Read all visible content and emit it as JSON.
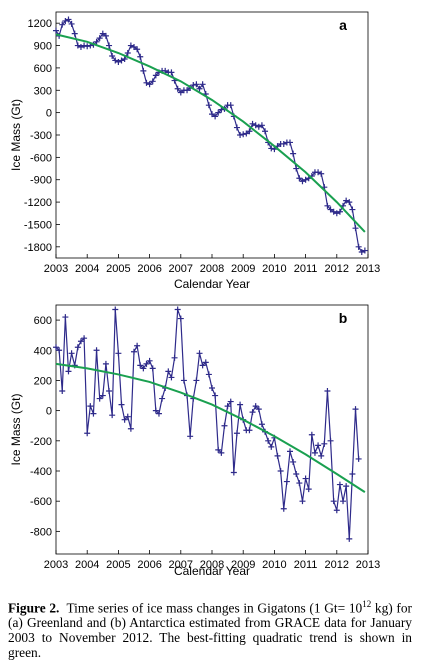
{
  "chart_data": [
    {
      "type": "line",
      "annotation": "a",
      "xlabel": "Calendar Year",
      "ylabel": "Ice Mass (Gt)",
      "xlim": [
        2003,
        2013
      ],
      "xticks": [
        2003,
        2004,
        2005,
        2006,
        2007,
        2008,
        2009,
        2010,
        2011,
        2012,
        2013
      ],
      "ylim": [
        -1950,
        1350
      ],
      "yticks": [
        1200,
        900,
        600,
        300,
        0,
        -300,
        -600,
        -900,
        -1200,
        -1500,
        -1800
      ],
      "series": [
        {
          "color": "#2e2a8a",
          "marker": "+",
          "x": [
            2003.0,
            2003.1,
            2003.2,
            2003.3,
            2003.4,
            2003.5,
            2003.6,
            2003.7,
            2003.8,
            2003.9,
            2004.0,
            2004.1,
            2004.2,
            2004.3,
            2004.4,
            2004.5,
            2004.6,
            2004.7,
            2004.8,
            2004.9,
            2005.0,
            2005.1,
            2005.2,
            2005.3,
            2005.4,
            2005.5,
            2005.6,
            2005.7,
            2005.8,
            2005.9,
            2006.0,
            2006.1,
            2006.2,
            2006.3,
            2006.4,
            2006.5,
            2006.6,
            2006.7,
            2006.8,
            2006.9,
            2007.0,
            2007.1,
            2007.2,
            2007.3,
            2007.4,
            2007.5,
            2007.6,
            2007.7,
            2007.8,
            2007.9,
            2008.0,
            2008.1,
            2008.2,
            2008.3,
            2008.4,
            2008.5,
            2008.6,
            2008.7,
            2008.8,
            2008.9,
            2009.0,
            2009.1,
            2009.2,
            2009.3,
            2009.4,
            2009.5,
            2009.6,
            2009.7,
            2009.8,
            2009.9,
            2010.0,
            2010.1,
            2010.2,
            2010.3,
            2010.4,
            2010.5,
            2010.6,
            2010.7,
            2010.8,
            2010.9,
            2011.0,
            2011.1,
            2011.2,
            2011.3,
            2011.4,
            2011.5,
            2011.6,
            2011.7,
            2011.8,
            2011.9,
            2012.0,
            2012.1,
            2012.2,
            2012.3,
            2012.4,
            2012.5,
            2012.6,
            2012.7,
            2012.8,
            2012.9
          ],
          "values": [
            1100,
            1030,
            1180,
            1230,
            1250,
            1190,
            1060,
            900,
            880,
            900,
            890,
            900,
            910,
            950,
            1000,
            1060,
            1030,
            900,
            760,
            700,
            680,
            700,
            720,
            800,
            900,
            880,
            850,
            750,
            560,
            400,
            380,
            420,
            500,
            540,
            560,
            560,
            540,
            540,
            430,
            320,
            270,
            300,
            300,
            330,
            370,
            380,
            320,
            380,
            250,
            100,
            -20,
            -50,
            0,
            40,
            50,
            100,
            100,
            -50,
            -200,
            -300,
            -290,
            -280,
            -250,
            -150,
            -170,
            -190,
            -170,
            -250,
            -400,
            -480,
            -490,
            -450,
            -420,
            -420,
            -400,
            -400,
            -550,
            -750,
            -880,
            -920,
            -900,
            -880,
            -850,
            -800,
            -800,
            -820,
            -1000,
            -1250,
            -1300,
            -1330,
            -1350,
            -1330,
            -1250,
            -1180,
            -1200,
            -1300,
            -1550,
            -1800,
            -1870,
            -1850
          ]
        },
        {
          "color": "#1aa050",
          "x": [
            2003,
            2004,
            2005,
            2006,
            2007,
            2008,
            2009,
            2010,
            2011,
            2012,
            2012.9
          ],
          "values": [
            1050,
            950,
            800,
            620,
            420,
            170,
            -120,
            -450,
            -800,
            -1200,
            -1600
          ]
        }
      ]
    },
    {
      "type": "line",
      "annotation": "b",
      "xlabel": "Calendar Year",
      "ylabel": "Ice Mass (Gt)",
      "xlim": [
        2003,
        2013
      ],
      "xticks": [
        2003,
        2004,
        2005,
        2006,
        2007,
        2008,
        2009,
        2010,
        2011,
        2012,
        2013
      ],
      "ylim": [
        -950,
        700
      ],
      "yticks": [
        600,
        400,
        200,
        0,
        -200,
        -400,
        -600,
        -800
      ],
      "series": [
        {
          "color": "#2e2a8a",
          "marker": "+",
          "x": [
            2003.0,
            2003.1,
            2003.2,
            2003.3,
            2003.4,
            2003.5,
            2003.6,
            2003.7,
            2003.8,
            2003.9,
            2004.0,
            2004.1,
            2004.2,
            2004.3,
            2004.4,
            2004.5,
            2004.6,
            2004.7,
            2004.8,
            2004.9,
            2005.0,
            2005.1,
            2005.2,
            2005.3,
            2005.4,
            2005.5,
            2005.6,
            2005.7,
            2005.8,
            2005.9,
            2006.0,
            2006.1,
            2006.2,
            2006.3,
            2006.4,
            2006.5,
            2006.6,
            2006.7,
            2006.8,
            2006.9,
            2007.0,
            2007.1,
            2007.2,
            2007.3,
            2007.4,
            2007.5,
            2007.6,
            2007.7,
            2007.8,
            2007.9,
            2008.0,
            2008.1,
            2008.2,
            2008.3,
            2008.4,
            2008.5,
            2008.6,
            2008.7,
            2008.8,
            2008.9,
            2009.0,
            2009.1,
            2009.2,
            2009.3,
            2009.4,
            2009.5,
            2009.6,
            2009.7,
            2009.8,
            2009.9,
            2010.0,
            2010.1,
            2010.2,
            2010.3,
            2010.4,
            2010.5,
            2010.6,
            2010.7,
            2010.8,
            2010.9,
            2011.0,
            2011.1,
            2011.2,
            2011.3,
            2011.4,
            2011.5,
            2011.6,
            2011.7,
            2011.8,
            2011.9,
            2012.0,
            2012.1,
            2012.2,
            2012.3,
            2012.4,
            2012.5,
            2012.6,
            2012.7
          ],
          "values": [
            420,
            400,
            130,
            620,
            260,
            380,
            300,
            420,
            460,
            480,
            -150,
            30,
            -20,
            400,
            80,
            100,
            310,
            130,
            -30,
            670,
            380,
            40,
            -60,
            -40,
            -120,
            390,
            430,
            300,
            280,
            310,
            330,
            280,
            0,
            -20,
            80,
            150,
            260,
            220,
            350,
            670,
            610,
            200,
            100,
            -170,
            80,
            200,
            380,
            300,
            320,
            240,
            150,
            100,
            -260,
            -280,
            -100,
            30,
            60,
            -410,
            -150,
            40,
            -60,
            -130,
            -130,
            -10,
            30,
            10,
            -90,
            -140,
            -200,
            -240,
            -180,
            -300,
            -400,
            -650,
            -470,
            -270,
            -340,
            -420,
            -480,
            -600,
            -450,
            -520,
            -160,
            -280,
            -230,
            -300,
            -220,
            130,
            -200,
            -600,
            -660,
            -490,
            -600,
            -500,
            -850,
            -420,
            10,
            -320
          ]
        },
        {
          "color": "#1aa050",
          "x": [
            2003,
            2004,
            2005,
            2006,
            2007,
            2008,
            2009,
            2010,
            2011,
            2012,
            2012.9
          ],
          "values": [
            310,
            280,
            240,
            190,
            120,
            40,
            -60,
            -170,
            -290,
            -420,
            -540
          ]
        }
      ]
    }
  ],
  "caption": {
    "label": "Figure 2.",
    "text_1": "Time series of ice mass changes in Gigatons (1 Gt= 10",
    "superscript": "12",
    "text_2": " kg) for (a) Greenland and (b) Antarctica estimated from GRACE data for January 2003 to November 2012. The best-fitting quadratic trend is shown in green."
  }
}
